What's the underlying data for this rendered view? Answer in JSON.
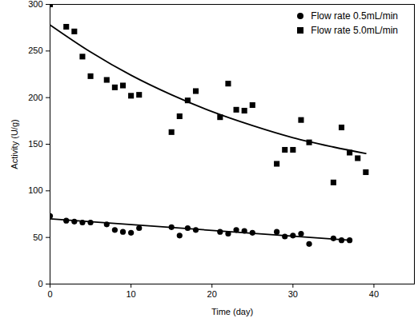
{
  "chart_data": {
    "type": "scatter",
    "x_label": "Time (day)",
    "y_label": "Activity (U/g)",
    "xlim": [
      0,
      45
    ],
    "xticks": [
      0,
      10,
      20,
      30,
      40
    ],
    "ylim": [
      0,
      300
    ],
    "yticks": [
      0,
      50,
      100,
      150,
      200,
      250,
      300
    ],
    "legend": "upper right",
    "series": [
      {
        "name": "Flow rate 0.5mL/min",
        "color": "#000000",
        "marker": "circle",
        "x": [
          0,
          2,
          3,
          4,
          5,
          7,
          8,
          9,
          10,
          11,
          15,
          16,
          17,
          18,
          21,
          22,
          23,
          24,
          25,
          28,
          29,
          30,
          31,
          32,
          35,
          36,
          37
        ],
        "values": [
          73,
          68,
          67,
          66,
          66,
          64,
          58,
          56,
          55,
          60,
          61,
          52,
          60,
          58,
          56,
          54,
          58,
          57,
          55,
          56,
          51,
          52,
          54,
          43,
          49,
          47,
          47
        ],
        "fit": {
          "x": [
            0,
            37
          ],
          "values": [
            70,
            47
          ]
        }
      },
      {
        "name": "Flow rate 5.0mL/min",
        "color": "#000000",
        "marker": "square",
        "x": [
          0,
          2,
          3,
          4,
          5,
          7,
          8,
          9,
          10,
          11,
          15,
          16,
          17,
          18,
          21,
          22,
          23,
          24,
          25,
          28,
          29,
          30,
          31,
          32,
          35,
          36,
          37,
          38,
          39
        ],
        "values": [
          300,
          276,
          271,
          244,
          223,
          219,
          211,
          213,
          202,
          203,
          163,
          180,
          197,
          207,
          179,
          215,
          187,
          186,
          192,
          129,
          144,
          144,
          176,
          152,
          109,
          168,
          141,
          135,
          120
        ],
        "fit": {
          "x": [
            0,
            5,
            10,
            15,
            20,
            25,
            30,
            35,
            39
          ],
          "values": [
            278,
            249,
            224,
            203,
            185,
            170,
            157,
            147,
            140
          ]
        }
      }
    ]
  }
}
